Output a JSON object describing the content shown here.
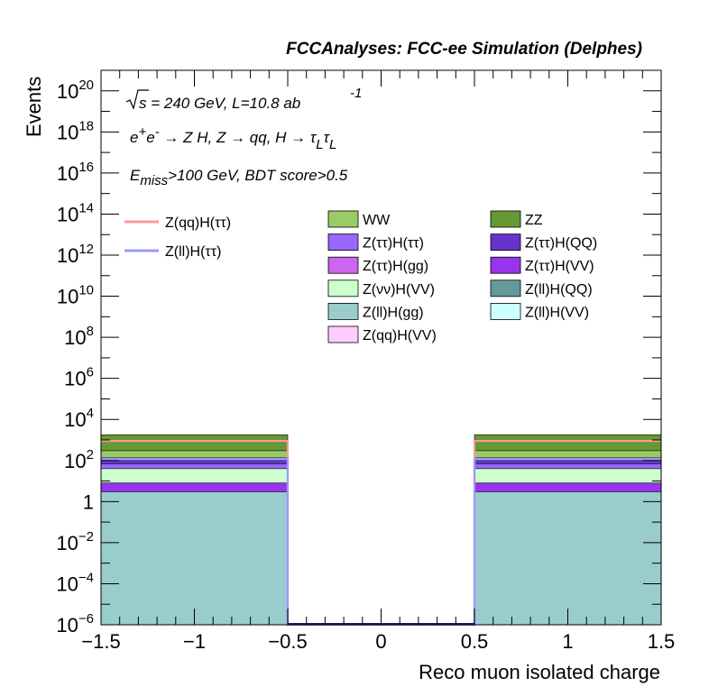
{
  "chart_data": {
    "type": "area",
    "title": "FCCAnalyses: FCC-ee Simulation (Delphes)",
    "xlabel": "Reco muon isolated charge",
    "ylabel": "Events",
    "xlim": [
      -1.5,
      1.5
    ],
    "ylim": [
      1e-06,
      1e+21
    ],
    "y_scale": "log",
    "grid": false,
    "x_ticks": [
      {
        "value": -1.5,
        "label": "−1.5"
      },
      {
        "value": -1,
        "label": "−1"
      },
      {
        "value": -0.5,
        "label": "−0.5"
      },
      {
        "value": 0,
        "label": "0"
      },
      {
        "value": 0.5,
        "label": "0.5"
      },
      {
        "value": 1,
        "label": "1"
      },
      {
        "value": 1.5,
        "label": "1.5"
      }
    ],
    "y_ticks": [
      {
        "value": 1e-06,
        "base": "10",
        "exp": "−6"
      },
      {
        "value": 0.0001,
        "base": "10",
        "exp": "−4"
      },
      {
        "value": 0.01,
        "base": "10",
        "exp": "−2"
      },
      {
        "value": 1,
        "base": "1",
        "exp": ""
      },
      {
        "value": 100.0,
        "base": "10",
        "exp": "2"
      },
      {
        "value": 10000.0,
        "base": "10",
        "exp": "4"
      },
      {
        "value": 1000000.0,
        "base": "10",
        "exp": "6"
      },
      {
        "value": 100000000.0,
        "base": "10",
        "exp": "8"
      },
      {
        "value": 10000000000.0,
        "base": "10",
        "exp": "10"
      },
      {
        "value": 1000000000000.0,
        "base": "10",
        "exp": "12"
      },
      {
        "value": 100000000000000.0,
        "base": "10",
        "exp": "14"
      },
      {
        "value": 1e+16,
        "base": "10",
        "exp": "16"
      },
      {
        "value": 1e+18,
        "base": "10",
        "exp": "18"
      },
      {
        "value": 1e+20,
        "base": "10",
        "exp": "20"
      }
    ],
    "bins": [
      {
        "x_low": -1.5,
        "x_high": -0.5
      },
      {
        "x_low": -0.5,
        "x_high": 0.5
      },
      {
        "x_low": 0.5,
        "x_high": 1.5
      }
    ],
    "stack": [
      {
        "name": "Z(ll)H(gg)",
        "color": "#99cccc",
        "cumulative": [
          3.0,
          0,
          3.0
        ]
      },
      {
        "name": "Z(ττ)H(VV)",
        "color": "#9933ee",
        "cumulative": [
          8.0,
          0,
          8.0
        ]
      },
      {
        "name": "Z(νν)H(VV)",
        "color": "#ccffcc",
        "cumulative": [
          40,
          0,
          40
        ]
      },
      {
        "name": "Z(ττ)H(ττ)",
        "color": "#9966ff",
        "cumulative": [
          70,
          0,
          70
        ]
      },
      {
        "name": "Z(ττ)H(QQ)",
        "color": "#6633cc",
        "cumulative": [
          100,
          0,
          100
        ]
      },
      {
        "name": "Z(ll)H(VV)",
        "color": "#ccffff",
        "cumulative": [
          140,
          0,
          140
        ]
      },
      {
        "name": "WW",
        "color": "#99cc66",
        "cumulative": [
          300,
          0,
          300
        ]
      },
      {
        "name": "ZZ",
        "color": "#669933",
        "cumulative": [
          1800,
          0,
          1800
        ]
      }
    ],
    "lines": [
      {
        "name": "Z(qq)H(ττ)",
        "color": "#ff9999",
        "values": [
          900,
          1e-06,
          900
        ]
      },
      {
        "name": "Z(ll)H(ττ)",
        "color": "#9999ff",
        "values": [
          120,
          1e-06,
          120
        ]
      }
    ],
    "legend": {
      "placement": "top",
      "lines": [
        {
          "name": "Z(qq)H(ττ)",
          "color": "#ff9999"
        },
        {
          "name": "Z(ll)H(ττ)",
          "color": "#9999ff"
        }
      ],
      "col1": [
        {
          "name": "WW",
          "color": "#99cc66"
        },
        {
          "name": "Z(ττ)H(ττ)",
          "color": "#9966ff"
        },
        {
          "name": "Z(ττ)H(gg)",
          "color": "#cc66ee"
        },
        {
          "name": "Z(νν)H(VV)",
          "color": "#ccffcc"
        },
        {
          "name": "Z(ll)H(gg)",
          "color": "#99cccc"
        },
        {
          "name": "Z(qq)H(VV)",
          "color": "#ffccff"
        }
      ],
      "col2": [
        {
          "name": "ZZ",
          "color": "#669933"
        },
        {
          "name": "Z(ττ)H(QQ)",
          "color": "#6633cc"
        },
        {
          "name": "Z(ττ)H(VV)",
          "color": "#9933ee"
        },
        {
          "name": "Z(ll)H(QQ)",
          "color": "#669999"
        },
        {
          "name": "Z(ll)H(VV)",
          "color": "#ccffff"
        }
      ]
    },
    "annotations": {
      "energy": "s = 240 GeV, L=10.8 ab",
      "lumi_exp": "-1",
      "process_main": "e",
      "process_sup1": "+",
      "process_mid": "e",
      "process_sup2": "-",
      "process_text": " → Z H, Z  → qq, H  → τ",
      "process_sub1": "L",
      "process_tau2": "τ",
      "process_sub2": "L",
      "cut_main": "E",
      "cut_sub": "miss",
      "cut_text": ">100 GeV, BDT score>0.5"
    }
  }
}
